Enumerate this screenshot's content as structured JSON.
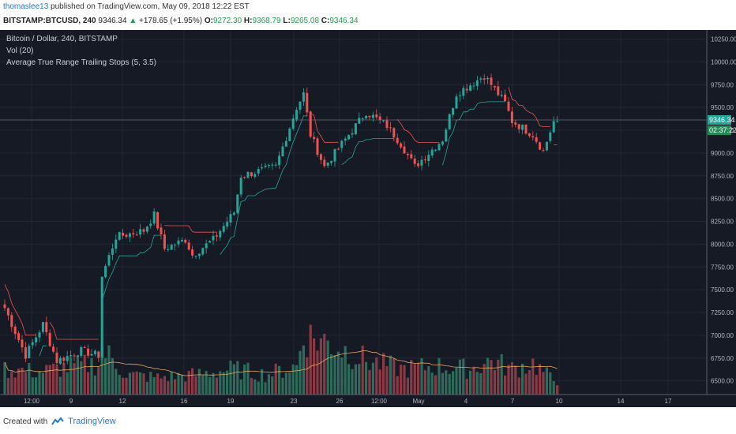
{
  "header": {
    "author": "thomaslee13",
    "published_text": "published on TradingView.com, May 09, 2018 12:22 EST",
    "symbol": "BITSTAMP:BTCUSD, 240",
    "last": "9346.34",
    "change_arrow": "▲",
    "change": "+178.65 (+1.95%)",
    "o_label": "O:",
    "o": "9272.30",
    "h_label": "H:",
    "h": "9368.79",
    "l_label": "L:",
    "l": "9265.08",
    "c_label": "C:",
    "c": "9346.34"
  },
  "legend": {
    "title": "Bitcoin / Dollar, 240, BITSTAMP",
    "vol": "Vol (20)",
    "atr": "Average True Range Trailing Stops (5, 3.5)"
  },
  "price_badge": "9346.34",
  "countdown_badge": "02:37:22",
  "footer": {
    "created": "Created with",
    "brand": "TradingView"
  },
  "colors": {
    "background": "#161a25",
    "up": "#26a69a",
    "down": "#ef5350",
    "volume_ma": "#e8a35a"
  },
  "chart_data": {
    "type": "candlestick",
    "title": "Bitcoin / Dollar, 240, BITSTAMP",
    "ylim": [
      6350,
      10350
    ],
    "y_ticks": [
      10250,
      10000,
      9750,
      9500,
      9250,
      9000,
      8750,
      8500,
      8250,
      8000,
      7750,
      7500,
      7250,
      7000,
      6750,
      6500
    ],
    "x_ticks": [
      "12:00",
      "9",
      "12",
      "16",
      "19",
      "23",
      "26",
      "12:00",
      "May",
      "4",
      "7",
      "10",
      "14",
      "17"
    ],
    "anchors_close": [
      [
        0,
        7300
      ],
      [
        6,
        6780
      ],
      [
        11,
        7120
      ],
      [
        15,
        6720
      ],
      [
        22,
        6830
      ],
      [
        27,
        6780
      ],
      [
        28,
        7650
      ],
      [
        32,
        8080
      ],
      [
        40,
        8150
      ],
      [
        43,
        8320
      ],
      [
        46,
        7950
      ],
      [
        52,
        8050
      ],
      [
        54,
        7880
      ],
      [
        60,
        8050
      ],
      [
        66,
        8350
      ],
      [
        68,
        8750
      ],
      [
        78,
        8850
      ],
      [
        84,
        9500
      ],
      [
        86,
        9650
      ],
      [
        88,
        9200
      ],
      [
        92,
        8850
      ],
      [
        98,
        9150
      ],
      [
        104,
        9450
      ],
      [
        110,
        9300
      ],
      [
        114,
        9100
      ],
      [
        118,
        8850
      ],
      [
        126,
        9150
      ],
      [
        130,
        9650
      ],
      [
        138,
        9850
      ],
      [
        142,
        9650
      ],
      [
        144,
        9550
      ],
      [
        146,
        9350
      ],
      [
        152,
        9200
      ],
      [
        155,
        9020
      ],
      [
        158,
        9346
      ]
    ],
    "volume_anchors": [
      [
        0,
        9
      ],
      [
        10,
        8
      ],
      [
        20,
        10
      ],
      [
        27,
        11
      ],
      [
        28,
        16
      ],
      [
        35,
        7
      ],
      [
        44,
        6
      ],
      [
        55,
        7
      ],
      [
        66,
        9
      ],
      [
        75,
        7
      ],
      [
        84,
        10
      ],
      [
        86,
        21
      ],
      [
        94,
        18
      ],
      [
        104,
        12
      ],
      [
        114,
        9
      ],
      [
        124,
        10
      ],
      [
        134,
        9
      ],
      [
        140,
        12
      ],
      [
        146,
        9
      ],
      [
        152,
        11
      ],
      [
        158,
        5
      ]
    ],
    "last_price": 9346.34
  }
}
